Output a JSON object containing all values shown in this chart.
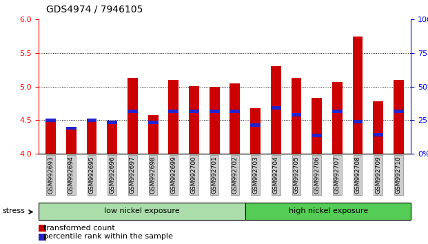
{
  "title": "GDS4974 / 7946105",
  "samples": [
    "GSM992693",
    "GSM992694",
    "GSM992695",
    "GSM992696",
    "GSM992697",
    "GSM992698",
    "GSM992699",
    "GSM992700",
    "GSM992701",
    "GSM992702",
    "GSM992703",
    "GSM992704",
    "GSM992705",
    "GSM992706",
    "GSM992707",
    "GSM992708",
    "GSM992709",
    "GSM992710"
  ],
  "red_values": [
    4.5,
    4.38,
    4.5,
    4.47,
    5.13,
    4.58,
    5.1,
    5.01,
    5.0,
    5.05,
    4.68,
    5.3,
    5.13,
    4.83,
    5.07,
    5.75,
    4.78,
    5.1
  ],
  "blue_values": [
    4.5,
    4.38,
    4.5,
    4.47,
    4.63,
    4.47,
    4.63,
    4.63,
    4.63,
    4.63,
    4.43,
    4.68,
    4.58,
    4.27,
    4.63,
    4.48,
    4.28,
    4.63
  ],
  "group1_label": "low nickel exposure",
  "group2_label": "high nickel exposure",
  "group1_count": 10,
  "group2_count": 8,
  "stress_label": "stress",
  "legend1": "transformed count",
  "legend2": "percentile rank within the sample",
  "ylim_left": [
    4.0,
    6.0
  ],
  "ylim_right": [
    0,
    100
  ],
  "yticks_left": [
    4.0,
    4.5,
    5.0,
    5.5,
    6.0
  ],
  "yticks_right": [
    0,
    25,
    50,
    75,
    100
  ],
  "bar_color": "#cc0000",
  "blue_color": "#2222cc",
  "bg_color": "#ffffff",
  "group1_bg": "#aaddaa",
  "group2_bg": "#55cc55",
  "xticklabel_bg": "#cccccc",
  "bar_width": 0.5,
  "title_fontsize": 10,
  "tick_fontsize": 8,
  "label_fontsize": 8
}
